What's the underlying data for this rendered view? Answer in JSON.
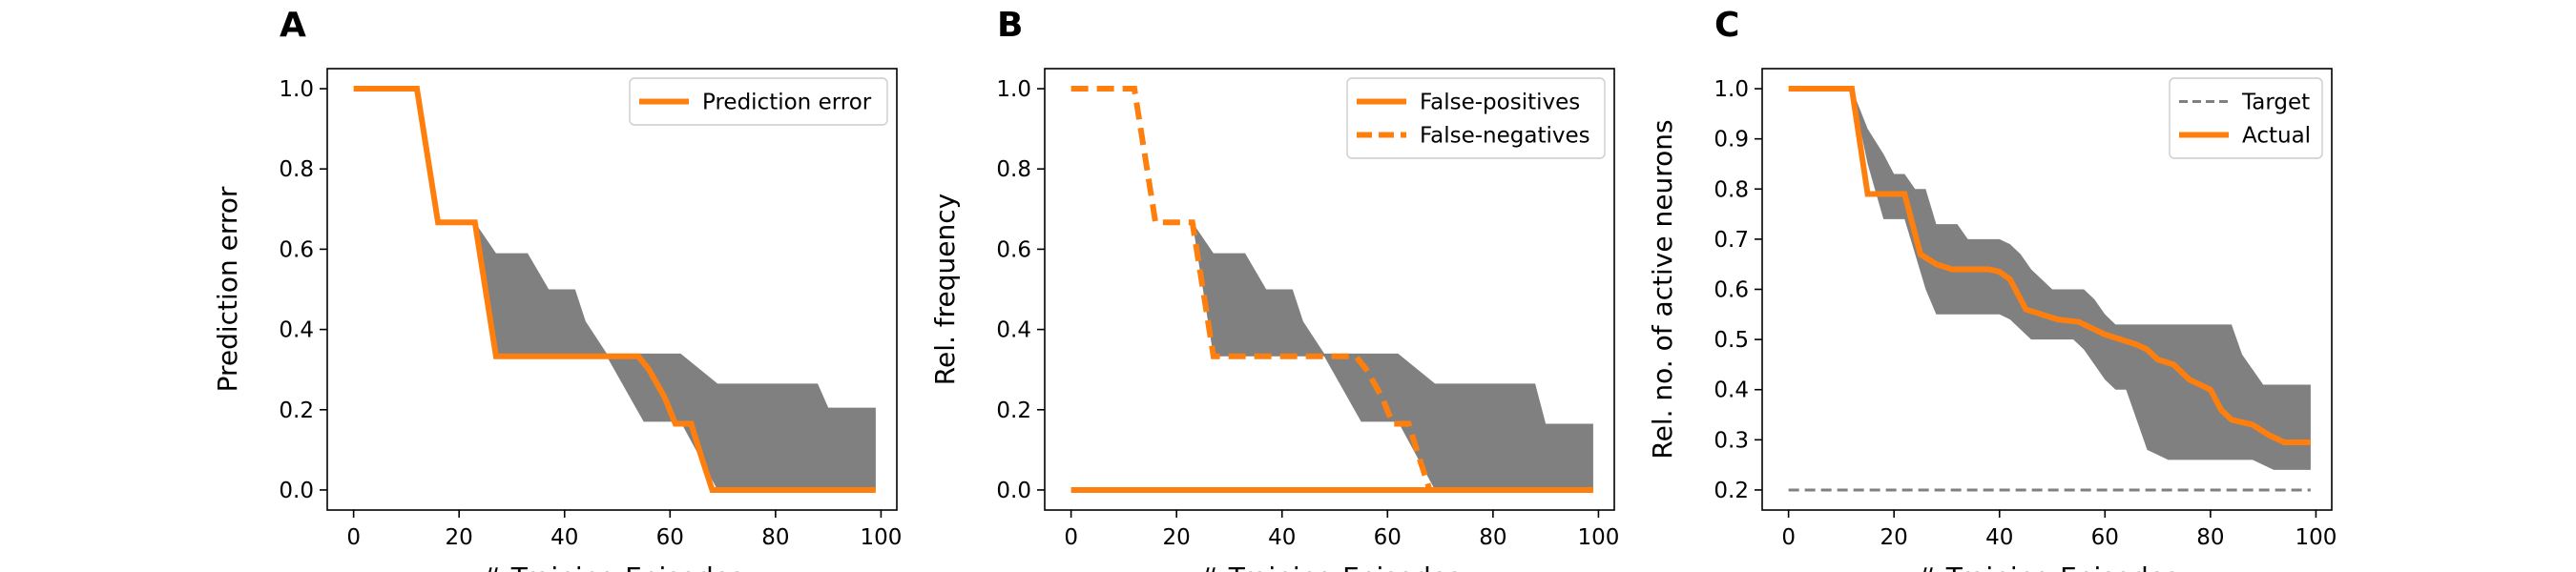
{
  "chart_data": [
    {
      "panel": "A",
      "type": "line",
      "xlabel": "# Training Episodes",
      "ylabel": "Prediction error",
      "xlim": [
        -5,
        103
      ],
      "ylim": [
        -0.05,
        1.05
      ],
      "xticks": [
        0,
        20,
        40,
        60,
        80,
        100
      ],
      "xtick_labels": [
        "0",
        "20",
        "40",
        "60",
        "80",
        "100"
      ],
      "yticks": [
        0.0,
        0.2,
        0.4,
        0.6,
        0.8,
        1.0
      ],
      "ytick_labels": [
        "0.0",
        "0.2",
        "0.4",
        "0.6",
        "0.8",
        "1.0"
      ],
      "legend_position": "top-right",
      "grid": false,
      "band": {
        "color": "#808080",
        "x": [
          0,
          12,
          16,
          22,
          23,
          27,
          33,
          37,
          42,
          44,
          48,
          55,
          62,
          69,
          88,
          90,
          99
        ],
        "upper": [
          1.0,
          1.0,
          0.667,
          0.667,
          0.667,
          0.59,
          0.59,
          0.5,
          0.5,
          0.42,
          0.34,
          0.34,
          0.34,
          0.265,
          0.265,
          0.205,
          0.205
        ],
        "lower": [
          1.0,
          1.0,
          0.667,
          0.667,
          0.667,
          0.333,
          0.333,
          0.333,
          0.333,
          0.333,
          0.333,
          0.17,
          0.17,
          0.0,
          0.0,
          0.0,
          0.0
        ]
      },
      "series": [
        {
          "name": "Prediction error",
          "color": "#ff7f0e",
          "dash": "solid",
          "x": [
            0,
            12,
            16,
            23,
            27,
            54,
            56,
            59,
            61,
            64,
            66,
            68,
            99
          ],
          "y": [
            1.0,
            1.0,
            0.667,
            0.667,
            0.333,
            0.333,
            0.3,
            0.23,
            0.165,
            0.165,
            0.08,
            0.0,
            0.0
          ]
        }
      ]
    },
    {
      "panel": "B",
      "type": "line",
      "xlabel": "# Training Episodes",
      "ylabel": "Rel. frequency",
      "xlim": [
        -5,
        103
      ],
      "ylim": [
        -0.05,
        1.05
      ],
      "xticks": [
        0,
        20,
        40,
        60,
        80,
        100
      ],
      "xtick_labels": [
        "0",
        "20",
        "40",
        "60",
        "80",
        "100"
      ],
      "yticks": [
        0.0,
        0.2,
        0.4,
        0.6,
        0.8,
        1.0
      ],
      "ytick_labels": [
        "0.0",
        "0.2",
        "0.4",
        "0.6",
        "0.8",
        "1.0"
      ],
      "legend_position": "top-right",
      "grid": false,
      "band": {
        "color": "#808080",
        "x": [
          0,
          12,
          16,
          22,
          23,
          27,
          33,
          37,
          42,
          44,
          48,
          55,
          62,
          69,
          88,
          90,
          99
        ],
        "upper": [
          1.0,
          1.0,
          0.667,
          0.667,
          0.667,
          0.59,
          0.59,
          0.5,
          0.5,
          0.42,
          0.34,
          0.34,
          0.34,
          0.265,
          0.265,
          0.165,
          0.165
        ],
        "lower": [
          1.0,
          1.0,
          0.667,
          0.667,
          0.667,
          0.333,
          0.333,
          0.333,
          0.333,
          0.333,
          0.333,
          0.17,
          0.17,
          0.0,
          0.0,
          0.0,
          0.0
        ]
      },
      "series": [
        {
          "name": "False-positives",
          "color": "#ff7f0e",
          "dash": "solid",
          "x": [
            0,
            99
          ],
          "y": [
            0.0,
            0.0
          ]
        },
        {
          "name": "False-negatives",
          "color": "#ff7f0e",
          "dash": "dashed",
          "x": [
            0,
            12,
            16,
            23,
            27,
            54,
            56,
            59,
            61,
            64,
            66,
            68,
            99
          ],
          "y": [
            1.0,
            1.0,
            0.667,
            0.667,
            0.333,
            0.333,
            0.3,
            0.23,
            0.165,
            0.165,
            0.08,
            0.0,
            0.0
          ]
        }
      ]
    },
    {
      "panel": "C",
      "type": "line",
      "xlabel": "# Training Episodes",
      "ylabel": "Rel. no. of active neurons",
      "xlim": [
        -5,
        103
      ],
      "ylim": [
        0.16,
        1.04
      ],
      "xticks": [
        0,
        20,
        40,
        60,
        80,
        100
      ],
      "xtick_labels": [
        "0",
        "20",
        "40",
        "60",
        "80",
        "100"
      ],
      "yticks": [
        0.2,
        0.3,
        0.4,
        0.5,
        0.6,
        0.7,
        0.8,
        0.9,
        1.0
      ],
      "ytick_labels": [
        "0.2",
        "0.3",
        "0.4",
        "0.5",
        "0.6",
        "0.7",
        "0.8",
        "0.9",
        "1.0"
      ],
      "legend_position": "top-right",
      "grid": false,
      "band": {
        "color": "#808080",
        "x": [
          0,
          12,
          15,
          18,
          20,
          22,
          24,
          26,
          28,
          32,
          34,
          36,
          40,
          42,
          44,
          46,
          48,
          50,
          54,
          56,
          58,
          60,
          62,
          64,
          66,
          68,
          72,
          76,
          84,
          86,
          88,
          90,
          92,
          94,
          99
        ],
        "upper": [
          1.0,
          1.0,
          0.92,
          0.87,
          0.83,
          0.83,
          0.8,
          0.8,
          0.73,
          0.73,
          0.7,
          0.7,
          0.7,
          0.69,
          0.67,
          0.64,
          0.62,
          0.6,
          0.6,
          0.6,
          0.58,
          0.55,
          0.53,
          0.53,
          0.53,
          0.53,
          0.53,
          0.53,
          0.53,
          0.47,
          0.44,
          0.41,
          0.41,
          0.41,
          0.41
        ],
        "lower": [
          1.0,
          1.0,
          0.85,
          0.74,
          0.74,
          0.74,
          0.67,
          0.6,
          0.55,
          0.55,
          0.55,
          0.55,
          0.55,
          0.54,
          0.52,
          0.5,
          0.5,
          0.5,
          0.5,
          0.48,
          0.45,
          0.42,
          0.4,
          0.4,
          0.34,
          0.28,
          0.26,
          0.26,
          0.26,
          0.26,
          0.26,
          0.25,
          0.24,
          0.24,
          0.24
        ]
      },
      "series": [
        {
          "name": "Target",
          "color": "#808080",
          "dash": "dashed",
          "x": [
            0,
            99
          ],
          "y": [
            0.2,
            0.2
          ]
        },
        {
          "name": "Actual",
          "color": "#ff7f0e",
          "dash": "solid",
          "x": [
            0,
            12,
            15,
            20,
            22,
            25,
            28,
            31,
            35,
            38,
            40,
            42,
            45,
            48,
            51,
            55,
            57,
            60,
            63,
            66,
            68,
            70,
            73,
            76,
            78,
            80,
            82,
            84,
            86,
            88,
            91,
            94,
            99
          ],
          "y": [
            1.0,
            1.0,
            0.79,
            0.79,
            0.79,
            0.67,
            0.65,
            0.64,
            0.64,
            0.64,
            0.635,
            0.62,
            0.56,
            0.55,
            0.54,
            0.535,
            0.525,
            0.51,
            0.5,
            0.49,
            0.48,
            0.46,
            0.45,
            0.42,
            0.41,
            0.4,
            0.36,
            0.34,
            0.335,
            0.33,
            0.31,
            0.295,
            0.295
          ]
        }
      ]
    }
  ]
}
